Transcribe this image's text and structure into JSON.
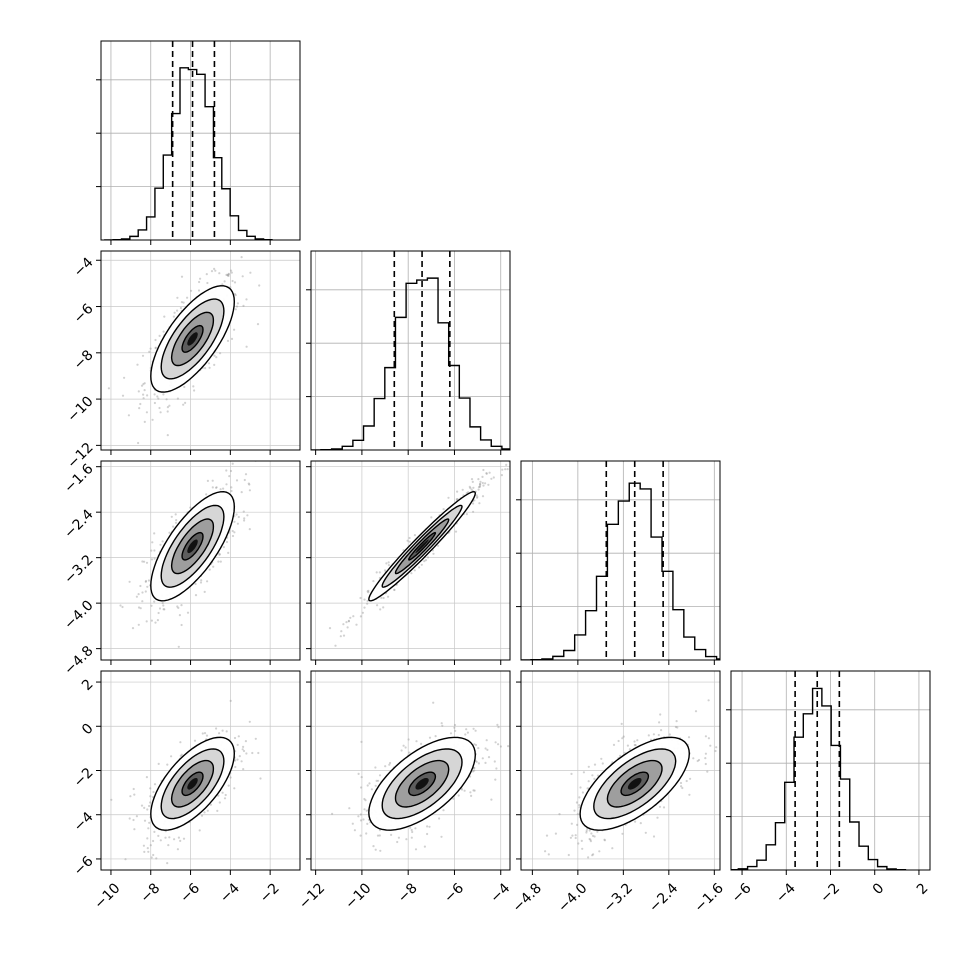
{
  "chart_data": {
    "type": "corner",
    "grid": true,
    "parameters": [
      {
        "range": [
          -10.5,
          -0.5
        ],
        "ticks": [
          -10,
          -8,
          -6,
          -4,
          -2
        ],
        "tick_labels": [
          "−10",
          "−8",
          "−6",
          "−4",
          "−2"
        ],
        "quantiles": [
          -6.9,
          -5.9,
          -4.8
        ],
        "center": -5.9,
        "sd": 1.05,
        "hist_peak": 0.93,
        "hist_yticks": [
          0.3,
          0.6,
          0.9
        ]
      },
      {
        "range": [
          -12.2,
          -3.6
        ],
        "ticks": [
          -12,
          -10,
          -8,
          -6,
          -4
        ],
        "tick_labels": [
          "−12",
          "−10",
          "−8",
          "−6",
          "−4"
        ],
        "quantiles": [
          -8.6,
          -7.4,
          -6.2
        ],
        "center": -7.4,
        "sd": 1.15,
        "hist_peak": 0.97,
        "hist_yticks": [
          0.3,
          0.6,
          0.9
        ]
      },
      {
        "range": [
          -5.0,
          -1.5
        ],
        "ticks": [
          -4.8,
          -4.0,
          -3.2,
          -2.4,
          -1.6
        ],
        "tick_labels": [
          "−4.8",
          "−4.0",
          "−3.2",
          "−2.4",
          "−1.6"
        ],
        "quantiles": [
          -3.5,
          -3.0,
          -2.5
        ],
        "center": -3.0,
        "sd": 0.48,
        "hist_peak": 1.0,
        "hist_yticks": [
          0.3,
          0.6,
          0.9
        ]
      },
      {
        "range": [
          -6.5,
          2.5
        ],
        "ticks": [
          -6,
          -4,
          -2,
          0,
          2
        ],
        "tick_labels": [
          "−6",
          "−4",
          "−2",
          "0",
          "2"
        ],
        "quantiles": [
          -3.6,
          -2.6,
          -1.6
        ],
        "center": -2.6,
        "sd": 1.05,
        "hist_peak": 1.0,
        "hist_yticks": [
          0.3,
          0.6,
          0.9
        ]
      }
    ],
    "pairs": [
      {
        "x": 0,
        "y": 1,
        "rho": 0.7
      },
      {
        "x": 0,
        "y": 2,
        "rho": 0.72
      },
      {
        "x": 1,
        "y": 2,
        "rho": 0.97
      },
      {
        "x": 0,
        "y": 3,
        "rho": 0.65
      },
      {
        "x": 1,
        "y": 3,
        "rho": 0.62
      },
      {
        "x": 2,
        "y": 3,
        "rho": 0.65
      }
    ],
    "contour_levels": [
      0.5,
      1.0,
      1.5,
      2.0
    ]
  }
}
